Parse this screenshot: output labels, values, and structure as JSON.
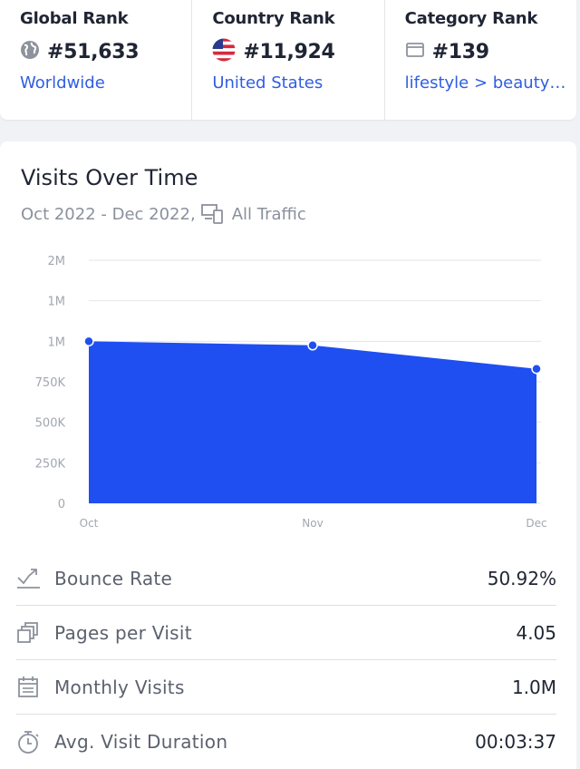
{
  "ranks": [
    {
      "title": "Global Rank",
      "icon": "globe-icon",
      "value": "#51,633",
      "link": "Worldwide"
    },
    {
      "title": "Country Rank",
      "icon": "us-flag-icon",
      "value": "#11,924",
      "link": "United States"
    },
    {
      "title": "Category Rank",
      "icon": "category-icon",
      "value": "#139",
      "link": "lifestyle > beauty…"
    }
  ],
  "visits": {
    "title": "Visits Over Time",
    "date_range": "Oct 2022 - Dec 2022,",
    "traffic_label": "All Traffic"
  },
  "chart_data": {
    "type": "area",
    "x": [
      "Oct",
      "Nov",
      "Dec"
    ],
    "values": [
      1000000,
      975000,
      830000
    ],
    "y_ticks": [
      "0",
      "250K",
      "500K",
      "750K",
      "1M",
      "1M",
      "2M"
    ],
    "ylim": [
      0,
      1500000
    ],
    "grid": true,
    "color": "#1f4ff0"
  },
  "metrics": [
    {
      "icon": "bounce-rate-icon",
      "label": "Bounce Rate",
      "value": "50.92%"
    },
    {
      "icon": "pages-icon",
      "label": "Pages per Visit",
      "value": "4.05"
    },
    {
      "icon": "calendar-icon",
      "label": "Monthly Visits",
      "value": "1.0M"
    },
    {
      "icon": "stopwatch-icon",
      "label": "Avg. Visit Duration",
      "value": "00:03:37"
    }
  ]
}
